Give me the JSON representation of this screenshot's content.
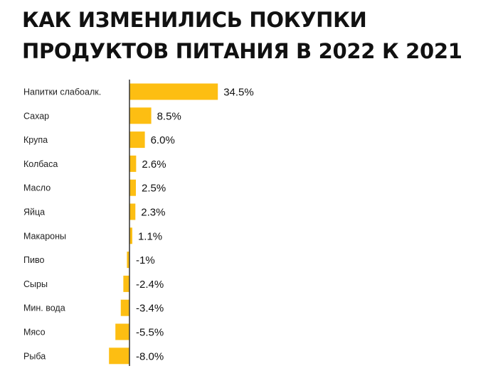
{
  "title": "КАК ИЗМЕНИЛИСЬ ПОКУПКИ ПРОДУКТОВ ПИТАНИЯ В 2022 К 2021",
  "colors": {
    "bar": "#FDBE12",
    "axis": "#333333",
    "text": "#111111"
  },
  "chart_data": {
    "type": "bar",
    "orientation": "horizontal",
    "title": "КАК ИЗМЕНИЛИСЬ ПОКУПКИ ПРОДУКТОВ ПИТАНИЯ В 2022 К 2021",
    "categories": [
      "Напитки слабоалк.",
      "Сахар",
      "Крупа",
      "Колбаса",
      "Масло",
      "Яйца",
      "Макароны",
      "Пиво",
      "Сыры",
      "Мин. вода",
      "Мясо",
      "Рыба"
    ],
    "values": [
      34.5,
      8.5,
      6.0,
      2.6,
      2.5,
      2.3,
      1.1,
      -1,
      -2.4,
      -3.4,
      -5.5,
      -8.0
    ],
    "value_labels": [
      "34.5%",
      "8.5%",
      "6.0%",
      "2.6%",
      "2.5%",
      "2.3%",
      "1.1%",
      "-1%",
      "-2.4%",
      "-3.4%",
      "-5.5%",
      "-8.0%"
    ],
    "xlim": [
      -8.0,
      34.5
    ],
    "grid": false,
    "legend": "none"
  }
}
